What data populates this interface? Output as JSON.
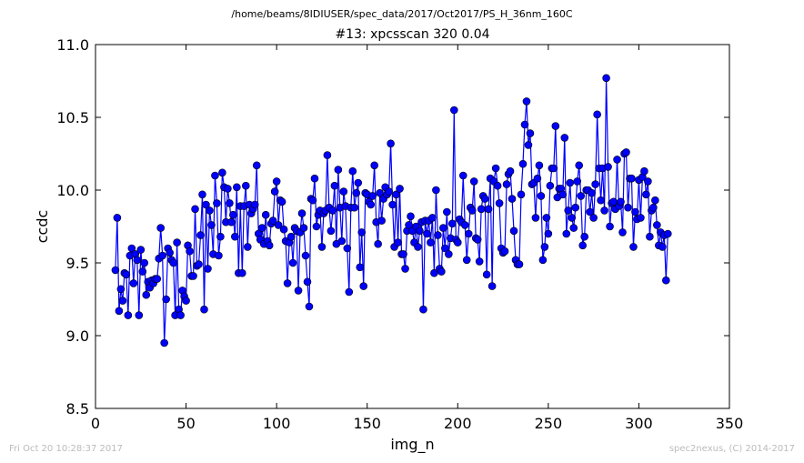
{
  "chart_data": {
    "type": "line",
    "suptitle": "/home/beams/8IDIUSER/spec_data/2017/Oct2017/PS_H_36nm_160C",
    "title": "#13: xpcsscan 320 0.04",
    "xlabel": "img_n",
    "ylabel": "ccdc",
    "xlim": [
      0,
      350
    ],
    "ylim": [
      8.5,
      11.0
    ],
    "xticks": [
      0,
      50,
      100,
      150,
      200,
      250,
      300,
      350
    ],
    "xtick_labels": [
      "0",
      "50",
      "100",
      "150",
      "200",
      "250",
      "300",
      "350"
    ],
    "yticks": [
      8.5,
      9.0,
      9.5,
      10.0,
      10.5,
      11.0
    ],
    "ytick_labels": [
      "8.5",
      "9.0",
      "9.5",
      "10.0",
      "10.5",
      "11.0"
    ],
    "grid": false,
    "colors": {
      "series": "#0000ff",
      "marker_edge": "#000000"
    },
    "series": [
      {
        "x_start": 11,
        "x_step": 1,
        "values": [
          9.45,
          9.81,
          9.17,
          9.32,
          9.24,
          9.43,
          9.42,
          9.14,
          9.55,
          9.6,
          9.36,
          9.56,
          9.52,
          9.14,
          9.59,
          9.44,
          9.5,
          9.28,
          9.37,
          9.33,
          9.38,
          9.36,
          9.39,
          9.39,
          9.53,
          9.74,
          9.55,
          8.95,
          9.25,
          9.6,
          9.57,
          9.52,
          9.5,
          9.14,
          9.64,
          9.18,
          9.14,
          9.31,
          9.27,
          9.24,
          9.62,
          9.58,
          9.41,
          9.41,
          9.87,
          9.48,
          9.49,
          9.69,
          9.97,
          9.18,
          9.9,
          9.46,
          9.86,
          9.76,
          9.56,
          10.1,
          9.91,
          9.55,
          9.68,
          10.12,
          10.02,
          9.78,
          10.01,
          9.91,
          9.78,
          9.83,
          9.68,
          10.02,
          9.43,
          9.89,
          9.43,
          9.89,
          10.03,
          9.61,
          9.9,
          9.84,
          9.87,
          9.9,
          10.17,
          9.7,
          9.66,
          9.74,
          9.63,
          9.83,
          9.65,
          9.62,
          9.77,
          9.79,
          9.99,
          10.06,
          9.76,
          9.93,
          9.92,
          9.73,
          9.65,
          9.36,
          9.64,
          9.68,
          9.5,
          9.74,
          9.72,
          9.31,
          9.71,
          9.84,
          9.74,
          9.55,
          9.37,
          9.2,
          9.94,
          9.93,
          10.08,
          9.75,
          9.83,
          9.86,
          9.61,
          9.84,
          9.86,
          10.24,
          9.88,
          9.72,
          9.86,
          10.03,
          9.63,
          10.14,
          9.88,
          9.65,
          9.99,
          9.89,
          9.6,
          9.3,
          9.88,
          10.13,
          9.88,
          9.98,
          10.05,
          9.47,
          9.71,
          9.34,
          9.98,
          9.97,
          9.92,
          9.9,
          9.96,
          10.17,
          9.78,
          9.63,
          9.98,
          9.79,
          9.94,
          10.02,
          9.97,
          9.99,
          10.32,
          9.9,
          9.61,
          9.97,
          9.64,
          10.01,
          9.56,
          9.56,
          9.46,
          9.72,
          9.76,
          9.82,
          9.72,
          9.64,
          9.75,
          9.61,
          9.72,
          9.78,
          9.18,
          9.79,
          9.7,
          9.79,
          9.64,
          9.81,
          9.43,
          10.0,
          9.69,
          9.46,
          9.44,
          9.74,
          9.6,
          9.85,
          9.56,
          9.67,
          9.77,
          10.55,
          9.66,
          9.64,
          9.8,
          9.78,
          10.1,
          9.76,
          9.52,
          9.7,
          9.88,
          9.86,
          10.06,
          9.67,
          9.66,
          9.51,
          9.87,
          9.96,
          9.94,
          9.42,
          9.87,
          10.08,
          9.34,
          10.06,
          10.15,
          10.03,
          9.91,
          9.6,
          9.57,
          9.58,
          10.04,
          10.11,
          10.13,
          9.94,
          9.72,
          9.52,
          9.49,
          9.49,
          9.97,
          10.18,
          10.45,
          10.61,
          10.31,
          10.39,
          10.04,
          10.05,
          9.81,
          10.08,
          10.17,
          9.96,
          9.52,
          9.61,
          9.81,
          9.7,
          10.03,
          10.15,
          10.15,
          10.44,
          9.95,
          10.01,
          10.01,
          9.97,
          10.36,
          9.7,
          9.86,
          10.05,
          9.81,
          9.74,
          9.88,
          10.06,
          10.17,
          9.96,
          9.62,
          9.68,
          10.0,
          10.0,
          9.85,
          9.98,
          9.81,
          10.04,
          10.52,
          10.15,
          9.93,
          10.15,
          9.86,
          10.77,
          10.16,
          9.75,
          9.91,
          9.92,
          9.87,
          10.21,
          9.89,
          9.92,
          9.71,
          10.25,
          10.26,
          9.88,
          10.08,
          10.08,
          9.61,
          9.85,
          9.8,
          10.07,
          9.81,
          10.09,
          10.13,
          9.97,
          10.06,
          9.68,
          9.86,
          9.88,
          9.93,
          9.76,
          9.62,
          9.71,
          9.61,
          9.69,
          9.38,
          9.7
        ]
      }
    ]
  },
  "footer": {
    "left": "Fri Oct 20 10:28:37 2017",
    "right": "spec2nexus, (C) 2014-2017"
  }
}
